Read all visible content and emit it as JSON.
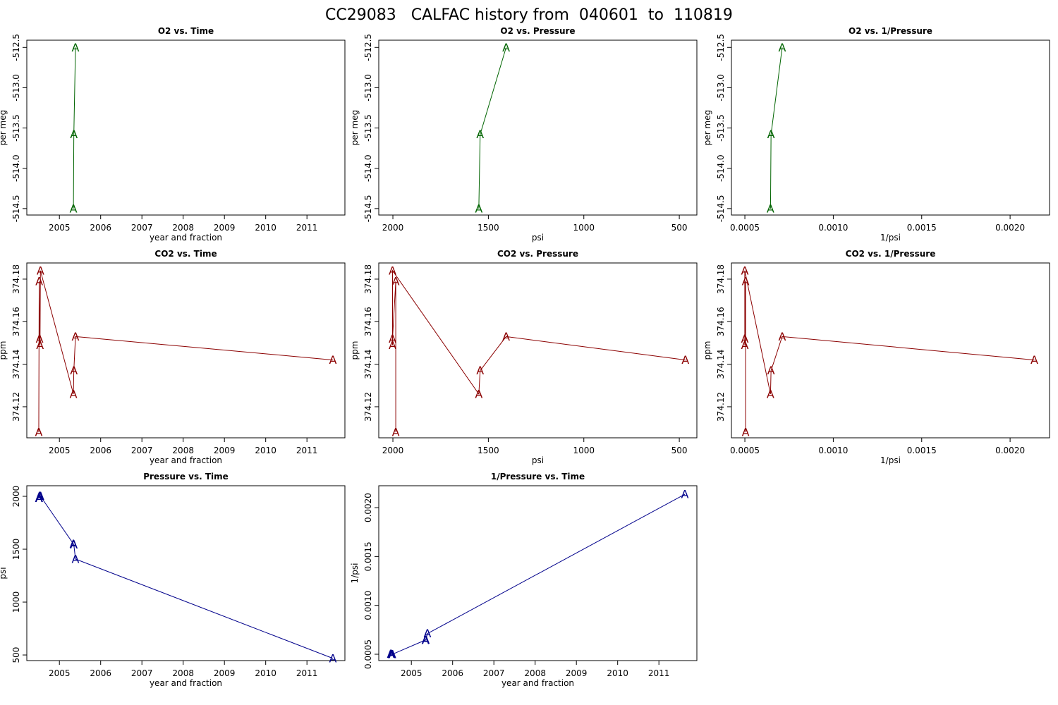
{
  "title": "CC29083   CALFAC history from  040601  to  110819",
  "chart_data": [
    {
      "type": "line",
      "title": "O2 vs. Time",
      "xlabel": "year and fraction",
      "ylabel": "per meg",
      "marker": "A",
      "color": "#006400",
      "x": [
        2005.34,
        2005.35,
        2005.39
      ],
      "values": [
        -514.5,
        -513.58,
        -512.5
      ],
      "xlim": [
        2004.21,
        2011.92
      ],
      "xticks": [
        2005,
        2006,
        2007,
        2008,
        2009,
        2010,
        2011
      ],
      "ylim": [
        -514.58,
        -512.41
      ],
      "yticks": [
        -514.5,
        {
          "value": -514,
          "label": "-514.0"
        },
        -513.5,
        {
          "value": -513,
          "label": "-513.0"
        },
        -512.5
      ]
    },
    {
      "type": "line",
      "title": "O2 vs. Pressure",
      "xlabel": "psi",
      "ylabel": "per meg",
      "marker": "A",
      "color": "#006400",
      "x": [
        1550,
        1543,
        1407
      ],
      "values": [
        -514.5,
        -513.58,
        -512.5
      ],
      "xlim": [
        2074,
        408
      ],
      "xticks": [
        2000,
        1500,
        1000,
        500
      ],
      "ylim": [
        -514.58,
        -512.41
      ],
      "yticks": [
        -514.5,
        {
          "value": -514,
          "label": "-514.0"
        },
        -513.5,
        {
          "value": -513,
          "label": "-513.0"
        },
        -512.5
      ]
    },
    {
      "type": "line",
      "title": "O2 vs. 1/Pressure",
      "xlabel": "1/psi",
      "ylabel": "per meg",
      "marker": "A",
      "color": "#006400",
      "x": [
        0.000645,
        0.000648,
        0.000711
      ],
      "values": [
        -514.5,
        -513.58,
        -512.5
      ],
      "xlim": [
        0.000424,
        0.002223
      ],
      "xticks": [
        0.0005,
        {
          "value": 0.001,
          "label": "0.0010"
        },
        0.0015,
        {
          "value": 0.002,
          "label": "0.0020"
        }
      ],
      "ylim": [
        -514.58,
        -512.41
      ],
      "yticks": [
        -514.5,
        {
          "value": -514,
          "label": "-514.0"
        },
        -513.5,
        {
          "value": -513,
          "label": "-513.0"
        },
        -512.5
      ]
    },
    {
      "type": "line",
      "title": "CO2 vs. Time",
      "xlabel": "year and fraction",
      "ylabel": "ppm",
      "marker": "A",
      "color": "#8b0000",
      "x": [
        2004.5,
        2004.51,
        2004.52,
        2004.53,
        2004.54,
        2005.34,
        2005.35,
        2005.39,
        2011.63
      ],
      "values": [
        374.108,
        374.179,
        374.152,
        374.149,
        374.184,
        374.126,
        374.137,
        374.153,
        374.142
      ],
      "xlim": [
        2004.21,
        2011.92
      ],
      "xticks": [
        2005,
        2006,
        2007,
        2008,
        2009,
        2010,
        2011
      ],
      "ylim": [
        374.1054,
        374.1876
      ],
      "yticks": [
        374.12,
        374.14,
        374.16,
        374.18
      ]
    },
    {
      "type": "line",
      "title": "CO2 vs. Pressure",
      "xlabel": "psi",
      "ylabel": "ppm",
      "marker": "A",
      "color": "#8b0000",
      "x": [
        1985,
        1985,
        2002,
        2002,
        2002,
        1550,
        1543,
        1407,
        468
      ],
      "values": [
        374.108,
        374.179,
        374.152,
        374.149,
        374.184,
        374.126,
        374.137,
        374.153,
        374.142
      ],
      "xlim": [
        2074,
        408
      ],
      "xticks": [
        2000,
        1500,
        1000,
        500
      ],
      "ylim": [
        374.1054,
        374.1876
      ],
      "yticks": [
        374.12,
        374.14,
        374.16,
        374.18
      ]
    },
    {
      "type": "line",
      "title": "CO2 vs. 1/Pressure",
      "xlabel": "1/psi",
      "ylabel": "ppm",
      "marker": "A",
      "color": "#8b0000",
      "x": [
        0.000504,
        0.000504,
        0.0004995,
        0.0004995,
        0.0004995,
        0.000645,
        0.000648,
        0.000711,
        0.002137
      ],
      "values": [
        374.108,
        374.179,
        374.152,
        374.149,
        374.184,
        374.126,
        374.137,
        374.153,
        374.142
      ],
      "xlim": [
        0.000424,
        0.002223
      ],
      "xticks": [
        0.0005,
        {
          "value": 0.001,
          "label": "0.0010"
        },
        0.0015,
        {
          "value": 0.002,
          "label": "0.0020"
        }
      ],
      "ylim": [
        374.1054,
        374.1876
      ],
      "yticks": [
        374.12,
        374.14,
        374.16,
        374.18
      ]
    },
    {
      "type": "line",
      "title": "Pressure vs. Time",
      "xlabel": "year and fraction",
      "ylabel": "psi",
      "marker": "A",
      "color": "#00008b",
      "x": [
        2004.5,
        2004.51,
        2004.52,
        2004.53,
        2004.54,
        2005.34,
        2005.35,
        2005.39,
        2011.63
      ],
      "values": [
        1985,
        1985,
        2002,
        2002,
        2002,
        1550,
        1543,
        1407,
        468
      ],
      "xlim": [
        2004.21,
        2011.92
      ],
      "xticks": [
        2005,
        2006,
        2007,
        2008,
        2009,
        2010,
        2011
      ],
      "ylim": [
        447,
        2100
      ],
      "yticks": [
        500,
        1000,
        1500,
        2000
      ]
    },
    {
      "type": "line",
      "title": "1/Pressure vs. Time",
      "xlabel": "year and fraction",
      "ylabel": "1/psi",
      "marker": "A",
      "color": "#00008b",
      "x": [
        2004.5,
        2004.51,
        2004.52,
        2004.53,
        2004.54,
        2005.34,
        2005.35,
        2005.39,
        2011.63
      ],
      "values": [
        0.000504,
        0.000504,
        0.0004995,
        0.0004995,
        0.0004995,
        0.000645,
        0.000648,
        0.000711,
        0.002137
      ],
      "xlim": [
        2004.21,
        2011.92
      ],
      "xticks": [
        2005,
        2006,
        2007,
        2008,
        2009,
        2010,
        2011
      ],
      "ylim": [
        0.000435,
        0.002224
      ],
      "yticks": [
        0.0005,
        {
          "value": 0.001,
          "label": "0.0010"
        },
        0.0015,
        {
          "value": 0.002,
          "label": "0.0020"
        }
      ]
    }
  ]
}
